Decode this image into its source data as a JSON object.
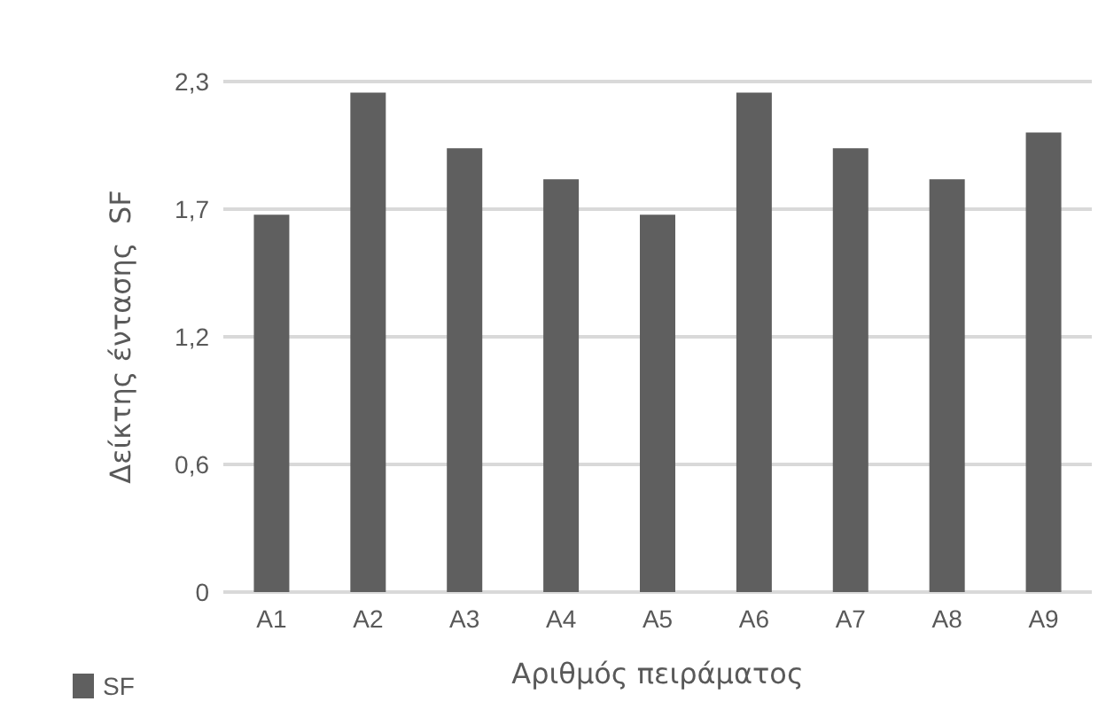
{
  "chart_data": {
    "type": "bar",
    "xlabel": "Αριθμός πειράματος",
    "ylabel": "Δείκτης έντασης  SF",
    "categories": [
      "A1",
      "A2",
      "A3",
      "A4",
      "A5",
      "A6",
      "A7",
      "A8",
      "A9"
    ],
    "series": [
      {
        "name": "SF",
        "color": "#5f5f5f",
        "values": [
          1.7,
          2.25,
          2.0,
          1.86,
          1.7,
          2.25,
          2.0,
          1.86,
          2.07
        ]
      }
    ],
    "ylim": [
      0,
      2.3
    ],
    "yticks": [
      0,
      {
        "value": 0.575,
        "label": "0,6"
      },
      {
        "value": 1.15,
        "label": "1,2"
      },
      {
        "value": 1.725,
        "label": "1,7"
      },
      {
        "value": 2.3,
        "label": "2,3"
      }
    ],
    "grid": "y",
    "legend": "bottom left"
  }
}
